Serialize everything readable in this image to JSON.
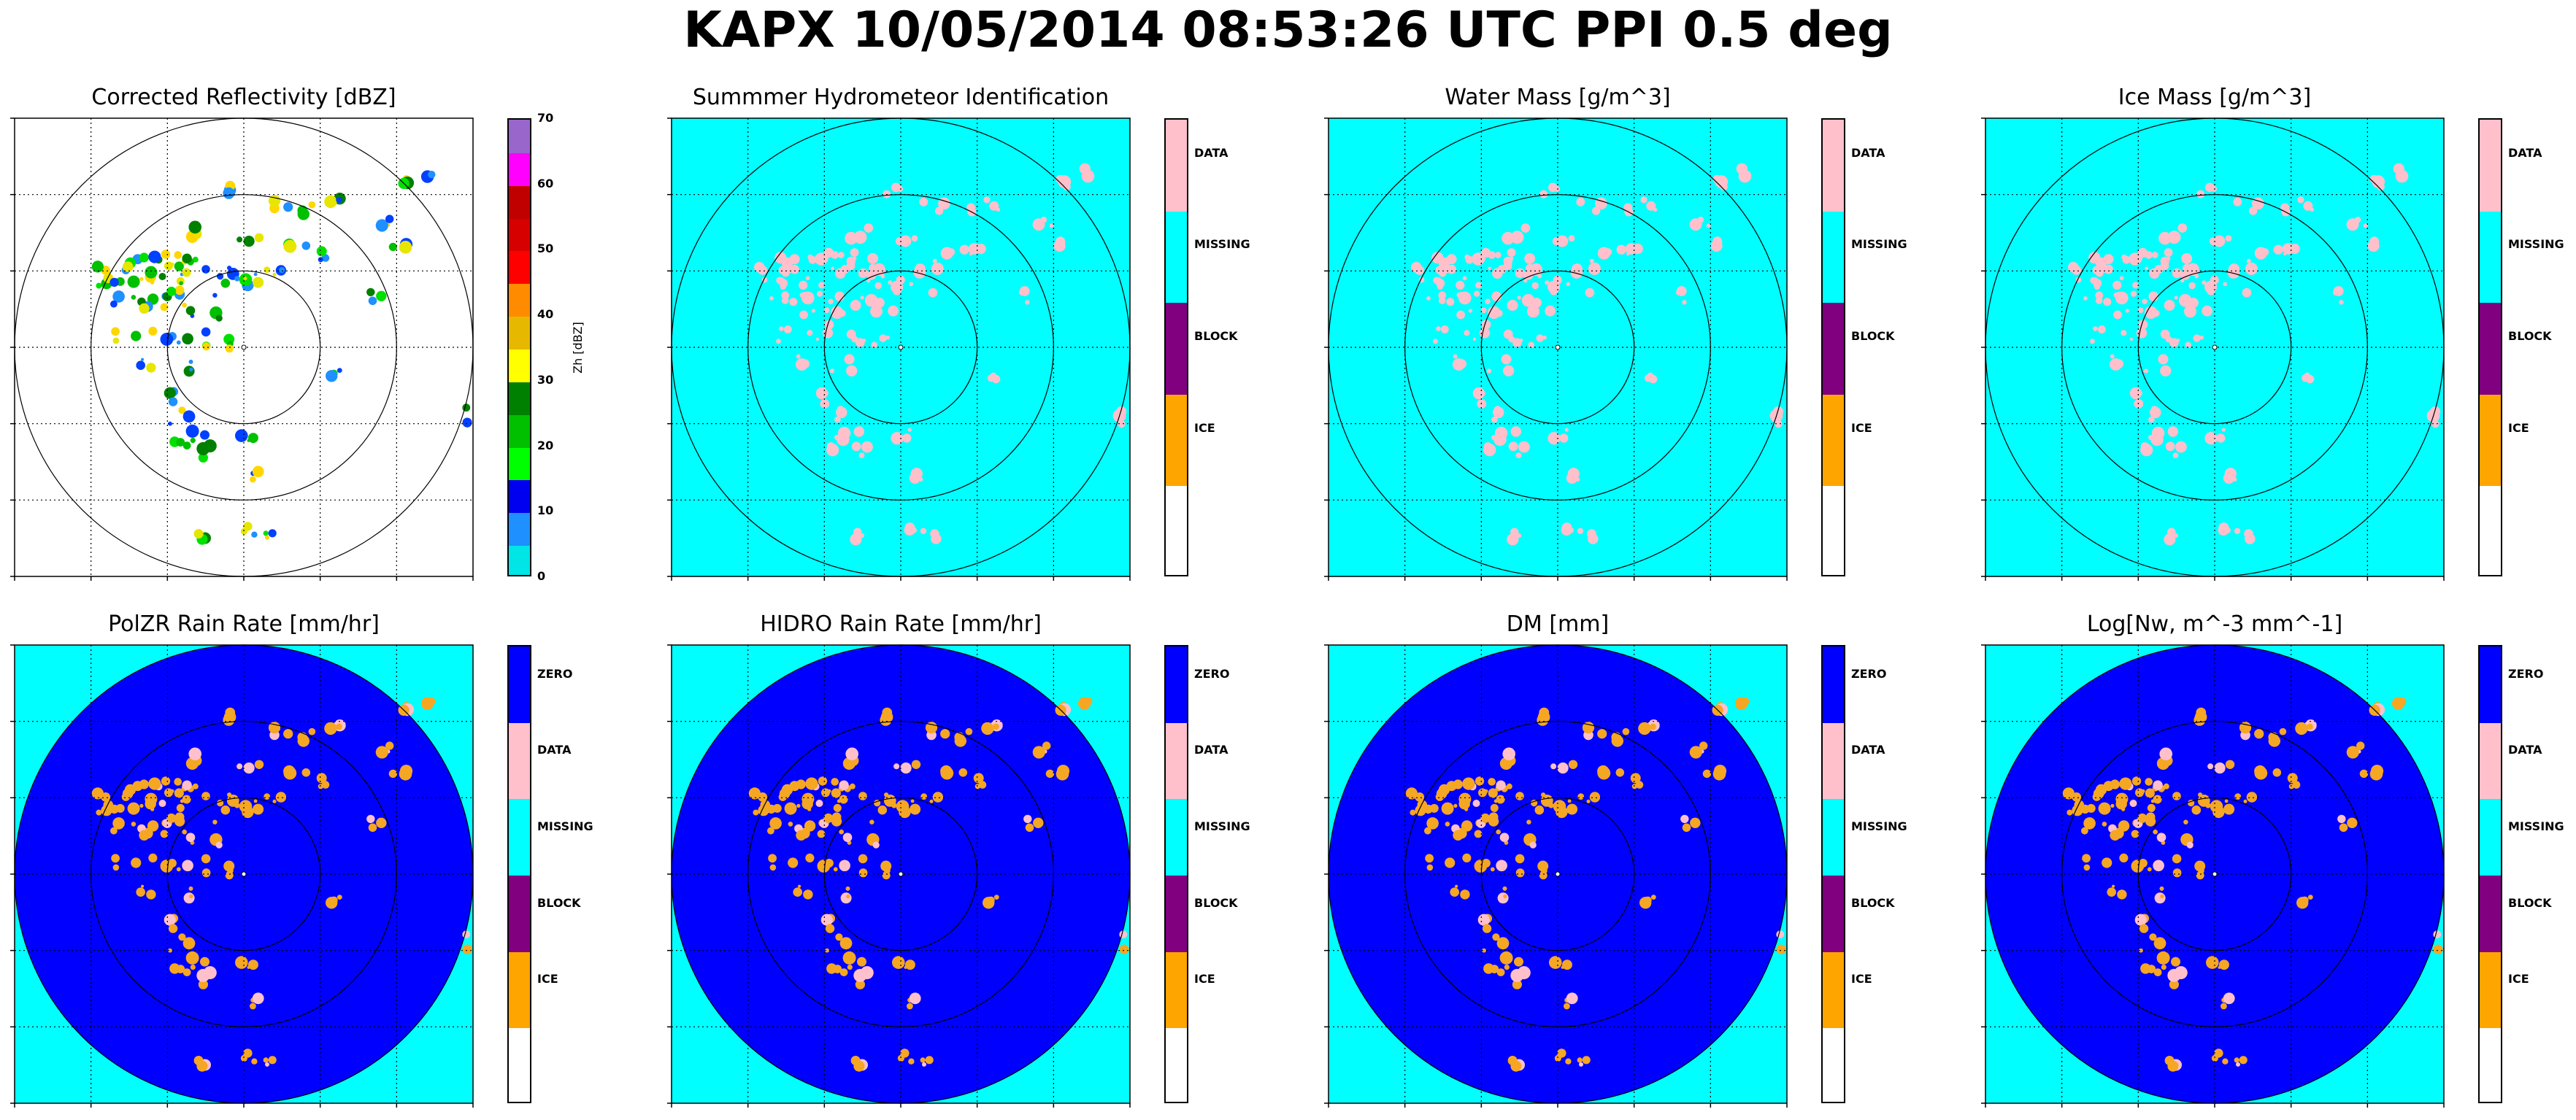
{
  "figure": {
    "title": "KAPX 10/05/2014 08:53:26 UTC PPI 0.5 deg"
  },
  "colors": {
    "zero": "#0000ff",
    "data": "#ffc0cb",
    "missing": "#00ffff",
    "block": "#800080",
    "ice": "#ffa500",
    "orange_fill": "#f5a623"
  },
  "chart_data": [
    {
      "type": "heatmap",
      "title": "Corrected Reflectivity [dBZ]",
      "background": "#ffffff",
      "colorbar": {
        "kind": "continuous",
        "label": "Zh [dBZ]",
        "range": [
          0,
          70
        ],
        "ticks": [
          "0",
          "10",
          "20",
          "30",
          "40",
          "50",
          "60",
          "70"
        ],
        "colors": [
          "#00e5e5",
          "#1e90ff",
          "#0000f0",
          "#00ff00",
          "#00c000",
          "#008000",
          "#ffff00",
          "#e6b800",
          "#ff8c00",
          "#ff0000",
          "#d70000",
          "#c00000",
          "#ff00ff",
          "#9966cc"
        ]
      }
    },
    {
      "type": "heatmap",
      "title": "Summmer Hydrometeor Identification",
      "background": "#00ffff",
      "colorbar": {
        "kind": "categorical",
        "labels": [
          "DATA",
          "MISSING",
          "BLOCK",
          "ICE",
          ""
        ],
        "colors": [
          "#ffc0cb",
          "#00ffff",
          "#800080",
          "#ffa500",
          "#ffffff"
        ]
      }
    },
    {
      "type": "heatmap",
      "title": "Water Mass [g/m^3]",
      "background": "#00ffff",
      "colorbar": {
        "kind": "categorical",
        "labels": [
          "DATA",
          "MISSING",
          "BLOCK",
          "ICE",
          ""
        ],
        "colors": [
          "#ffc0cb",
          "#00ffff",
          "#800080",
          "#ffa500",
          "#ffffff"
        ]
      }
    },
    {
      "type": "heatmap",
      "title": "Ice Mass [g/m^3]",
      "background": "#00ffff",
      "colorbar": {
        "kind": "categorical",
        "labels": [
          "DATA",
          "MISSING",
          "BLOCK",
          "ICE",
          ""
        ],
        "colors": [
          "#ffc0cb",
          "#00ffff",
          "#800080",
          "#ffa500",
          "#ffffff"
        ]
      }
    },
    {
      "type": "heatmap",
      "title": "PolZR Rain Rate [mm/hr]",
      "background": "#00ffff",
      "disk": "#0000ff",
      "colorbar": {
        "kind": "categorical",
        "labels": [
          "ZERO",
          "DATA",
          "MISSING",
          "BLOCK",
          "ICE",
          ""
        ],
        "colors": [
          "#0000ff",
          "#ffc0cb",
          "#00ffff",
          "#800080",
          "#ffa500",
          "#ffffff"
        ]
      }
    },
    {
      "type": "heatmap",
      "title": "HIDRO Rain Rate [mm/hr]",
      "background": "#00ffff",
      "disk": "#0000ff",
      "colorbar": {
        "kind": "categorical",
        "labels": [
          "ZERO",
          "DATA",
          "MISSING",
          "BLOCK",
          "ICE",
          ""
        ],
        "colors": [
          "#0000ff",
          "#ffc0cb",
          "#00ffff",
          "#800080",
          "#ffa500",
          "#ffffff"
        ]
      }
    },
    {
      "type": "heatmap",
      "title": "DM [mm]",
      "background": "#00ffff",
      "disk": "#0000ff",
      "colorbar": {
        "kind": "categorical",
        "labels": [
          "ZERO",
          "DATA",
          "MISSING",
          "BLOCK",
          "ICE",
          ""
        ],
        "colors": [
          "#0000ff",
          "#ffc0cb",
          "#00ffff",
          "#800080",
          "#ffa500",
          "#ffffff"
        ]
      }
    },
    {
      "type": "heatmap",
      "title": "Log[Nw, m^-3 mm^-1]",
      "background": "#00ffff",
      "disk": "#0000ff",
      "colorbar": {
        "kind": "categorical",
        "labels": [
          "ZERO",
          "DATA",
          "MISSING",
          "BLOCK",
          "ICE",
          ""
        ],
        "colors": [
          "#0000ff",
          "#ffc0cb",
          "#00ffff",
          "#800080",
          "#ffa500",
          "#ffffff"
        ]
      }
    }
  ]
}
